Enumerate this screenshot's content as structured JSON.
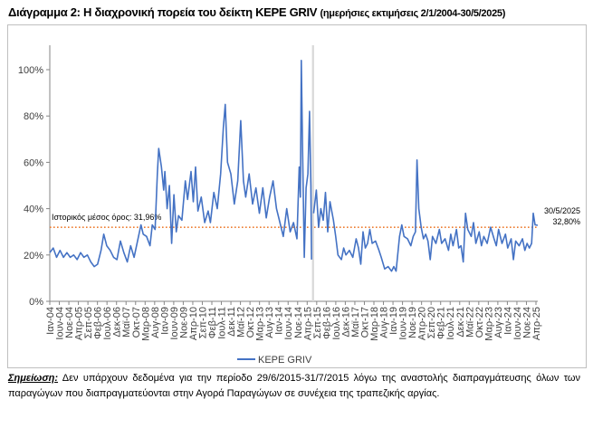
{
  "title": "Διάγραμμα 2: Η διαχρονική πορεία του δείκτη KEPE GRIV",
  "subtitle": "(ημερήσιες εκτιμήσεις 2/1/2004-30/5/2025)",
  "note_label": "Σημείωση:",
  "note_text": " Δεν υπάρχουν δεδομένα για την περίοδο 29/6/2015-31/7/2015 λόγω της αναστολής διαπραγμάτευσης όλων των παραγώγων που διαπραγματεύονται στην Αγορά Παραγώγων σε συνέχεια της τραπεζικής αργίας.",
  "colors": {
    "series": "#4472c4",
    "mean": "#ed7d31",
    "gap": "#d9d9d9"
  },
  "chart_data": {
    "type": "line",
    "title": "Διάγραμμα 2: Η διαχρονική πορεία του δείκτη KEPE GRIV",
    "ylabel": "",
    "xlabel": "",
    "ylim": [
      0,
      110
    ],
    "xlim": [
      2004.0,
      2025.42
    ],
    "yticks": [
      0,
      20,
      40,
      60,
      80,
      100
    ],
    "ytick_labels": [
      "0%",
      "20%",
      "40%",
      "60%",
      "80%",
      "100%"
    ],
    "xtick_labels": [
      "Ιαν-04",
      "Ιουν-04",
      "Νοε-04",
      "Απρ-05",
      "Σεπ-05",
      "Φεβ-06",
      "Ιουλ-06",
      "Δεκ-06",
      "Μαϊ-07",
      "Οκτ-07",
      "Μαρ-08",
      "Αυγ-08",
      "Ιαν-09",
      "Ιουν-09",
      "Νοε-09",
      "Απρ-10",
      "Σεπ-10",
      "Φεβ-11",
      "Ιουλ-11",
      "Δεκ-11",
      "Μαϊ-12",
      "Οκτ-12",
      "Μαρ-13",
      "Αυγ-13",
      "Ιαν-14",
      "Ιουν-14",
      "Νοε-14",
      "Απρ-15",
      "Σεπ-15",
      "Φεβ-16",
      "Ιουλ-16",
      "Δεκ-16",
      "Μαϊ-17",
      "Οκτ-17",
      "Μαρ-18",
      "Αυγ-18",
      "Ιαν-19",
      "Ιουν-19",
      "Νοε-19",
      "Απρ-20",
      "Σεπ-20",
      "Φεβ-21",
      "Ιουλ-21",
      "Δεκ-21",
      "Μαϊ-22",
      "Οκτ-22",
      "Μαρ-23",
      "Αυγ-23",
      "Ιαν-24",
      "Ιουν-24",
      "Νοε-24",
      "Απρ-25"
    ],
    "legend": {
      "label": "KEPE GRIV",
      "position": "bottom"
    },
    "mean": {
      "value": 31.96,
      "label": "Ιστορικός μέσος όρος: 31,96%"
    },
    "gap": {
      "from": 2015.49,
      "to": 2015.58
    },
    "last": {
      "date": "30/5/2025",
      "value_label": "32,80%"
    },
    "series": [
      {
        "name": "KEPE GRIV",
        "points": [
          [
            2004.0,
            21
          ],
          [
            2004.15,
            23
          ],
          [
            2004.3,
            19
          ],
          [
            2004.45,
            22
          ],
          [
            2004.6,
            19
          ],
          [
            2004.75,
            21
          ],
          [
            2004.9,
            19
          ],
          [
            2005.05,
            20
          ],
          [
            2005.2,
            18
          ],
          [
            2005.35,
            21
          ],
          [
            2005.5,
            19
          ],
          [
            2005.65,
            20
          ],
          [
            2005.8,
            17
          ],
          [
            2005.95,
            15
          ],
          [
            2006.1,
            16
          ],
          [
            2006.25,
            22
          ],
          [
            2006.37,
            29
          ],
          [
            2006.5,
            24
          ],
          [
            2006.65,
            22
          ],
          [
            2006.8,
            19
          ],
          [
            2006.95,
            18
          ],
          [
            2007.1,
            26
          ],
          [
            2007.25,
            21
          ],
          [
            2007.4,
            17
          ],
          [
            2007.55,
            24
          ],
          [
            2007.7,
            19
          ],
          [
            2007.85,
            26
          ],
          [
            2008.0,
            33
          ],
          [
            2008.1,
            29
          ],
          [
            2008.25,
            28
          ],
          [
            2008.4,
            24
          ],
          [
            2008.5,
            33
          ],
          [
            2008.62,
            31
          ],
          [
            2008.72,
            55
          ],
          [
            2008.78,
            66
          ],
          [
            2008.9,
            58
          ],
          [
            2009.0,
            48
          ],
          [
            2009.05,
            56
          ],
          [
            2009.15,
            40
          ],
          [
            2009.25,
            50
          ],
          [
            2009.35,
            25
          ],
          [
            2009.45,
            46
          ],
          [
            2009.55,
            30
          ],
          [
            2009.65,
            37
          ],
          [
            2009.8,
            35
          ],
          [
            2009.95,
            52
          ],
          [
            2010.05,
            44
          ],
          [
            2010.2,
            56
          ],
          [
            2010.3,
            43
          ],
          [
            2010.4,
            58
          ],
          [
            2010.5,
            39
          ],
          [
            2010.65,
            45
          ],
          [
            2010.8,
            34
          ],
          [
            2010.95,
            39
          ],
          [
            2011.05,
            34
          ],
          [
            2011.2,
            47
          ],
          [
            2011.35,
            40
          ],
          [
            2011.5,
            55
          ],
          [
            2011.62,
            75
          ],
          [
            2011.7,
            85
          ],
          [
            2011.8,
            60
          ],
          [
            2011.95,
            55
          ],
          [
            2012.1,
            42
          ],
          [
            2012.25,
            52
          ],
          [
            2012.38,
            78
          ],
          [
            2012.5,
            52
          ],
          [
            2012.6,
            45
          ],
          [
            2012.75,
            55
          ],
          [
            2012.9,
            42
          ],
          [
            2013.05,
            49
          ],
          [
            2013.2,
            38
          ],
          [
            2013.35,
            49
          ],
          [
            2013.5,
            36
          ],
          [
            2013.65,
            45
          ],
          [
            2013.8,
            52
          ],
          [
            2013.95,
            40
          ],
          [
            2014.1,
            34
          ],
          [
            2014.25,
            28
          ],
          [
            2014.4,
            40
          ],
          [
            2014.55,
            30
          ],
          [
            2014.7,
            34
          ],
          [
            2014.85,
            27
          ],
          [
            2014.95,
            58
          ],
          [
            2015.0,
            45
          ],
          [
            2015.04,
            104
          ],
          [
            2015.1,
            63
          ],
          [
            2015.17,
            19
          ],
          [
            2015.25,
            49
          ],
          [
            2015.33,
            55
          ],
          [
            2015.4,
            82
          ],
          [
            2015.46,
            50
          ],
          [
            2015.49,
            18
          ],
          null,
          [
            2015.58,
            38
          ],
          [
            2015.7,
            48
          ],
          [
            2015.8,
            32
          ],
          [
            2015.9,
            40
          ],
          [
            2016.0,
            35
          ],
          [
            2016.1,
            47
          ],
          [
            2016.2,
            30
          ],
          [
            2016.3,
            43
          ],
          [
            2016.45,
            35
          ],
          [
            2016.55,
            28
          ],
          [
            2016.65,
            20
          ],
          [
            2016.8,
            18
          ],
          [
            2016.9,
            23
          ],
          [
            2017.0,
            20
          ],
          [
            2017.15,
            22
          ],
          [
            2017.3,
            19
          ],
          [
            2017.45,
            27
          ],
          [
            2017.55,
            23
          ],
          [
            2017.65,
            16
          ],
          [
            2017.75,
            30
          ],
          [
            2017.85,
            23
          ],
          [
            2017.95,
            25
          ],
          [
            2018.05,
            31
          ],
          [
            2018.15,
            25
          ],
          [
            2018.3,
            26
          ],
          [
            2018.45,
            22
          ],
          [
            2018.55,
            19
          ],
          [
            2018.7,
            14
          ],
          [
            2018.85,
            15
          ],
          [
            2019.0,
            13
          ],
          [
            2019.1,
            15
          ],
          [
            2019.2,
            13
          ],
          [
            2019.35,
            28
          ],
          [
            2019.45,
            33
          ],
          [
            2019.55,
            28
          ],
          [
            2019.7,
            27
          ],
          [
            2019.85,
            24
          ],
          [
            2019.95,
            28
          ],
          [
            2020.05,
            30
          ],
          [
            2020.12,
            61
          ],
          [
            2020.2,
            40
          ],
          [
            2020.3,
            32
          ],
          [
            2020.4,
            27
          ],
          [
            2020.5,
            29
          ],
          [
            2020.6,
            26
          ],
          [
            2020.7,
            18
          ],
          [
            2020.8,
            28
          ],
          [
            2020.95,
            25
          ],
          [
            2021.1,
            31
          ],
          [
            2021.2,
            25
          ],
          [
            2021.35,
            27
          ],
          [
            2021.5,
            22
          ],
          [
            2021.6,
            29
          ],
          [
            2021.7,
            24
          ],
          [
            2021.85,
            31
          ],
          [
            2021.95,
            23
          ],
          [
            2022.05,
            24
          ],
          [
            2022.15,
            17
          ],
          [
            2022.25,
            38
          ],
          [
            2022.35,
            31
          ],
          [
            2022.5,
            28
          ],
          [
            2022.6,
            34
          ],
          [
            2022.7,
            25
          ],
          [
            2022.85,
            30
          ],
          [
            2022.95,
            24
          ],
          [
            2023.05,
            28
          ],
          [
            2023.2,
            25
          ],
          [
            2023.35,
            32
          ],
          [
            2023.5,
            27
          ],
          [
            2023.6,
            24
          ],
          [
            2023.7,
            31
          ],
          [
            2023.85,
            25
          ],
          [
            2024.0,
            29
          ],
          [
            2024.1,
            23
          ],
          [
            2024.25,
            27
          ],
          [
            2024.35,
            18
          ],
          [
            2024.45,
            26
          ],
          [
            2024.6,
            24
          ],
          [
            2024.75,
            27
          ],
          [
            2024.85,
            22
          ],
          [
            2024.95,
            25
          ],
          [
            2025.05,
            23
          ],
          [
            2025.15,
            25
          ],
          [
            2025.22,
            38
          ],
          [
            2025.3,
            33
          ],
          [
            2025.42,
            32.8
          ]
        ]
      }
    ]
  }
}
